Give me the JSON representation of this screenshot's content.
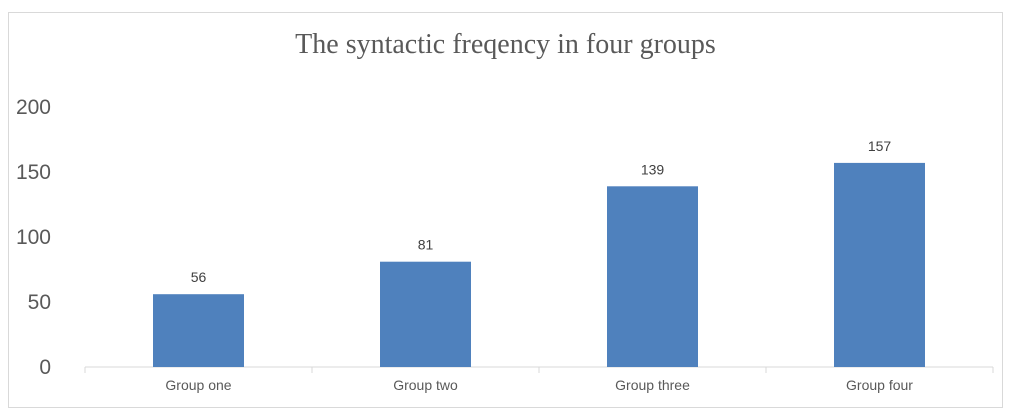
{
  "chart_data": {
    "type": "bar",
    "title": "The syntactic freqency in four groups",
    "xlabel": "",
    "ylabel": "",
    "categories": [
      "Group one",
      "Group two",
      "Group three",
      "Group four"
    ],
    "values": [
      56,
      81,
      139,
      157
    ],
    "data_labels": [
      "56",
      "81",
      "139",
      "157"
    ],
    "y_ticks": [
      0,
      50,
      100,
      150,
      200
    ],
    "ylim": [
      0,
      200
    ],
    "grid": false,
    "legend": "none",
    "bar_color": "#4f81bd",
    "axis_color": "#d9d9d9",
    "text_color": "#595959"
  }
}
